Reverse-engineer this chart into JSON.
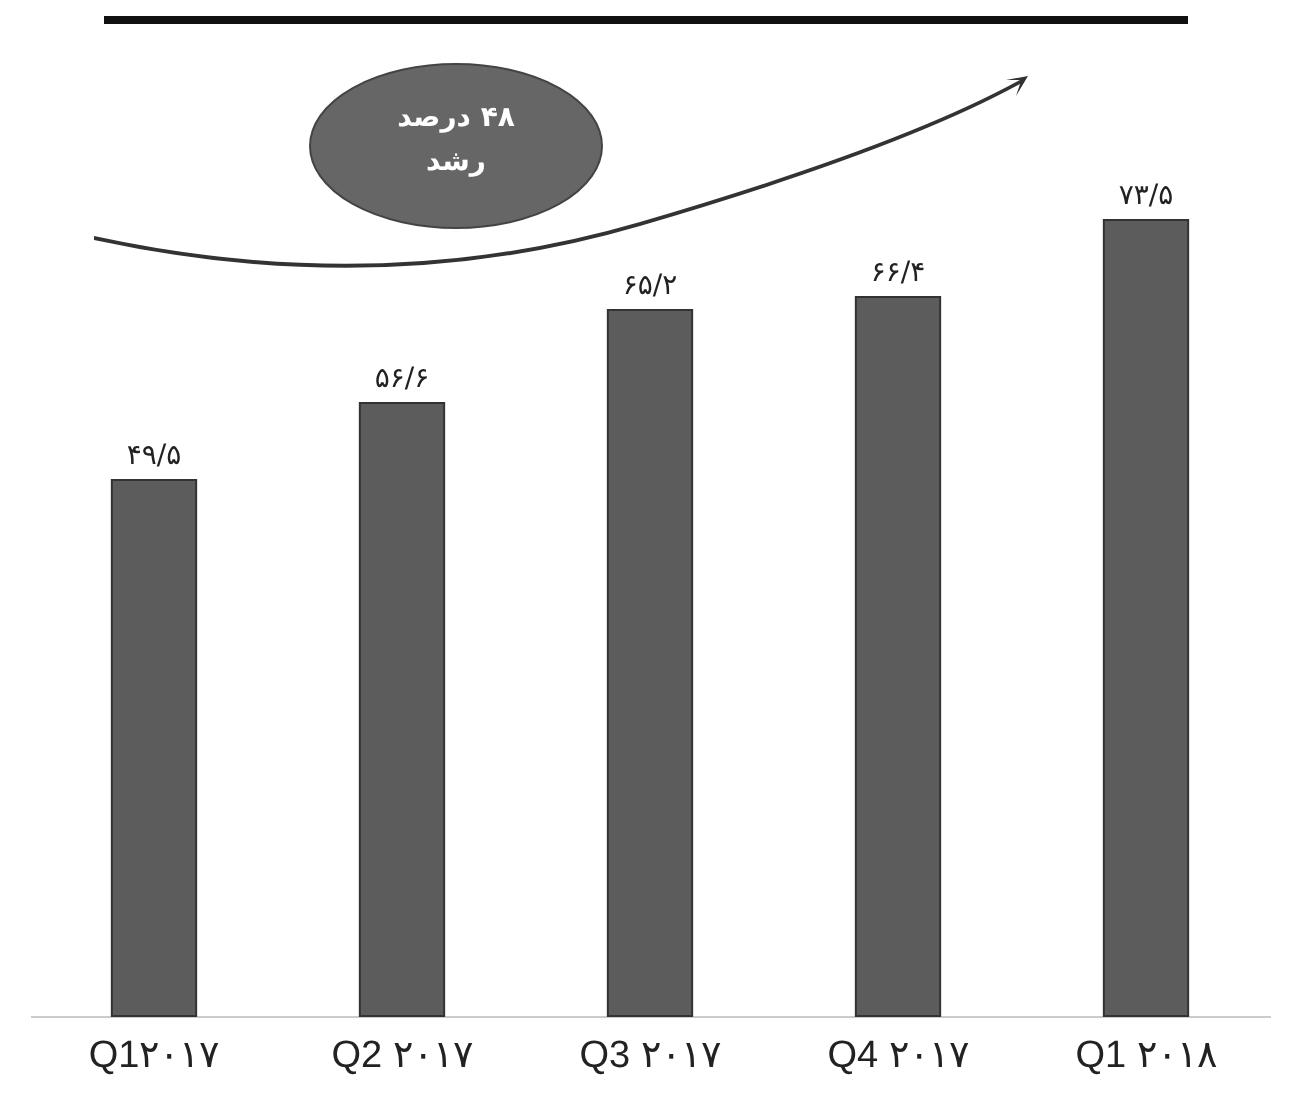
{
  "chart_data": {
    "type": "bar",
    "categories": [
      "Q1۲۰۱۷",
      "Q2 ۲۰۱۷",
      "Q3 ۲۰۱۷",
      "Q4 ۲۰۱۷",
      "Q1 ۲۰۱۸"
    ],
    "values": [
      49.5,
      56.6,
      65.2,
      66.4,
      73.5
    ],
    "value_labels": [
      "۴۹/۵",
      "۵۶/۶",
      "۶۵/۲",
      "۶۶/۴",
      "۷۳/۵"
    ],
    "color": "#5c5c5c",
    "annotations": [
      "۴۸ درصد رشد"
    ]
  }
}
